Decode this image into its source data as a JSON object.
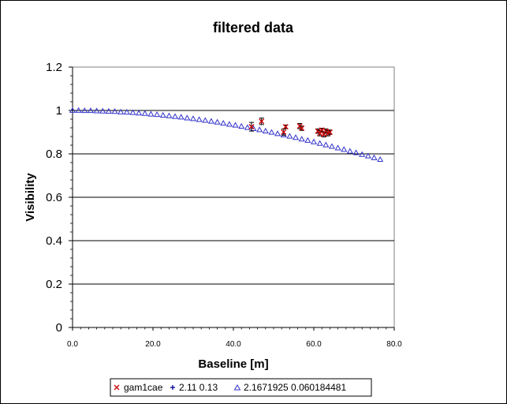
{
  "chart_data": {
    "type": "scatter",
    "title": "filtered data",
    "xlabel": "Baseline [m]",
    "ylabel": "Visibility",
    "xlim": [
      0,
      80
    ],
    "ylim": [
      0,
      1.2
    ],
    "x_ticks": [
      "0.0",
      "20.0",
      "40.0",
      "60.0",
      "80.0"
    ],
    "y_ticks": [
      "0",
      "0.2",
      "0.4",
      "0.6",
      "0.8",
      "1",
      "1.2"
    ],
    "grid": "horizontal major lines",
    "legend_position": "bottom",
    "series": [
      {
        "name": "gam1cae",
        "marker": "x",
        "color": "#cc0000",
        "points": [
          {
            "x": 44.5,
            "y": 0.925,
            "err": 0.02
          },
          {
            "x": 47.0,
            "y": 0.95,
            "err": 0.015
          },
          {
            "x": 52.5,
            "y": 0.9,
            "err": 0.015
          },
          {
            "x": 53.0,
            "y": 0.925,
            "err": 0.008
          },
          {
            "x": 56.5,
            "y": 0.928,
            "err": 0.012
          },
          {
            "x": 57.0,
            "y": 0.918,
            "err": 0.01
          },
          {
            "x": 61.0,
            "y": 0.905,
            "err": 0.01
          },
          {
            "x": 61.5,
            "y": 0.895,
            "err": 0.012
          },
          {
            "x": 62.0,
            "y": 0.91,
            "err": 0.008
          },
          {
            "x": 62.5,
            "y": 0.89,
            "err": 0.012
          },
          {
            "x": 63.0,
            "y": 0.905,
            "err": 0.01
          },
          {
            "x": 63.5,
            "y": 0.895,
            "err": 0.012
          },
          {
            "x": 64.0,
            "y": 0.9,
            "err": 0.01
          }
        ]
      },
      {
        "name": "2.11 0.13",
        "marker": "plus",
        "color": "#000099",
        "points": []
      },
      {
        "name": "2.1671925 0.060184481",
        "marker": "triangle",
        "color": "#3333cc",
        "points": [
          {
            "x": 0.0,
            "y": 1.0
          },
          {
            "x": 1.5,
            "y": 1.0
          },
          {
            "x": 3.0,
            "y": 0.999
          },
          {
            "x": 4.5,
            "y": 0.999
          },
          {
            "x": 6.0,
            "y": 0.998
          },
          {
            "x": 7.5,
            "y": 0.997
          },
          {
            "x": 9.0,
            "y": 0.996
          },
          {
            "x": 10.5,
            "y": 0.995
          },
          {
            "x": 12.0,
            "y": 0.993
          },
          {
            "x": 13.5,
            "y": 0.992
          },
          {
            "x": 15.0,
            "y": 0.99
          },
          {
            "x": 16.5,
            "y": 0.988
          },
          {
            "x": 18.0,
            "y": 0.986
          },
          {
            "x": 19.5,
            "y": 0.983
          },
          {
            "x": 21.0,
            "y": 0.981
          },
          {
            "x": 22.5,
            "y": 0.978
          },
          {
            "x": 24.0,
            "y": 0.975
          },
          {
            "x": 25.5,
            "y": 0.972
          },
          {
            "x": 27.0,
            "y": 0.969
          },
          {
            "x": 28.5,
            "y": 0.965
          },
          {
            "x": 30.0,
            "y": 0.962
          },
          {
            "x": 31.5,
            "y": 0.958
          },
          {
            "x": 33.0,
            "y": 0.954
          },
          {
            "x": 34.5,
            "y": 0.95
          },
          {
            "x": 36.0,
            "y": 0.946
          },
          {
            "x": 37.5,
            "y": 0.941
          },
          {
            "x": 39.0,
            "y": 0.936
          },
          {
            "x": 40.5,
            "y": 0.932
          },
          {
            "x": 42.0,
            "y": 0.927
          },
          {
            "x": 43.5,
            "y": 0.921
          },
          {
            "x": 45.0,
            "y": 0.916
          },
          {
            "x": 46.5,
            "y": 0.911
          },
          {
            "x": 48.0,
            "y": 0.905
          },
          {
            "x": 49.5,
            "y": 0.899
          },
          {
            "x": 51.0,
            "y": 0.893
          },
          {
            "x": 52.5,
            "y": 0.887
          },
          {
            "x": 54.0,
            "y": 0.881
          },
          {
            "x": 55.5,
            "y": 0.875
          },
          {
            "x": 57.0,
            "y": 0.868
          },
          {
            "x": 58.5,
            "y": 0.862
          },
          {
            "x": 60.0,
            "y": 0.855
          },
          {
            "x": 61.5,
            "y": 0.848
          },
          {
            "x": 63.0,
            "y": 0.841
          },
          {
            "x": 64.5,
            "y": 0.834
          },
          {
            "x": 66.0,
            "y": 0.827
          },
          {
            "x": 67.5,
            "y": 0.82
          },
          {
            "x": 69.0,
            "y": 0.812
          },
          {
            "x": 70.5,
            "y": 0.805
          },
          {
            "x": 72.0,
            "y": 0.797
          },
          {
            "x": 73.5,
            "y": 0.79
          },
          {
            "x": 75.0,
            "y": 0.782
          },
          {
            "x": 76.5,
            "y": 0.774
          }
        ]
      }
    ]
  }
}
